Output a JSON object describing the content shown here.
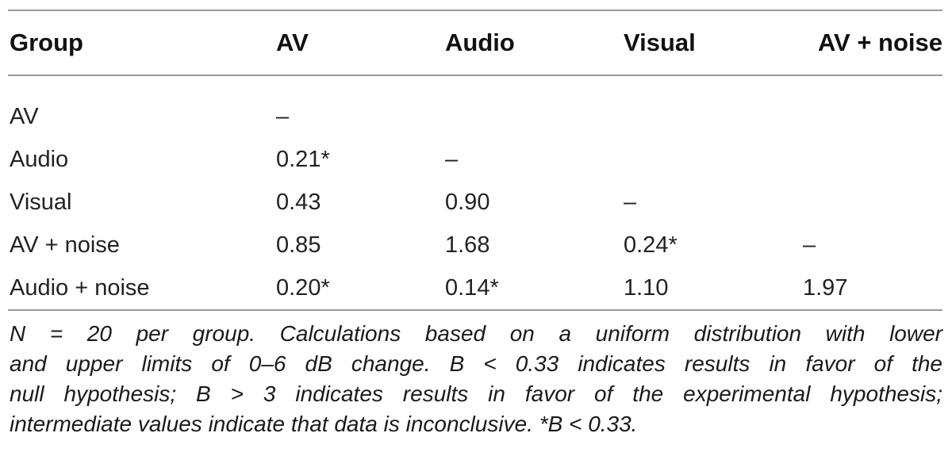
{
  "table": {
    "headers": [
      "Group",
      "AV",
      "Audio",
      "Visual",
      "AV + noise"
    ],
    "rows": [
      [
        "AV",
        "–",
        "",
        "",
        ""
      ],
      [
        "Audio",
        "0.21*",
        "–",
        "",
        ""
      ],
      [
        "Visual",
        "0.43",
        "0.90",
        "–",
        ""
      ],
      [
        "AV + noise",
        "0.85",
        "1.68",
        "0.24*",
        "–"
      ],
      [
        "Audio + noise",
        "0.20*",
        "0.14*",
        "1.10",
        "1.97"
      ]
    ]
  },
  "footnote": {
    "line1": "N = 20 per group. Calculations based on a uniform distribution with lower",
    "line2": "and upper limits of 0–6 dB change. B < 0.33 indicates results in favor of the",
    "line3": "null hypothesis; B > 3 indicates results in favor of the experimental hypothesis;",
    "line4": "intermediate values indicate that data is inconclusive. *B < 0.33."
  }
}
